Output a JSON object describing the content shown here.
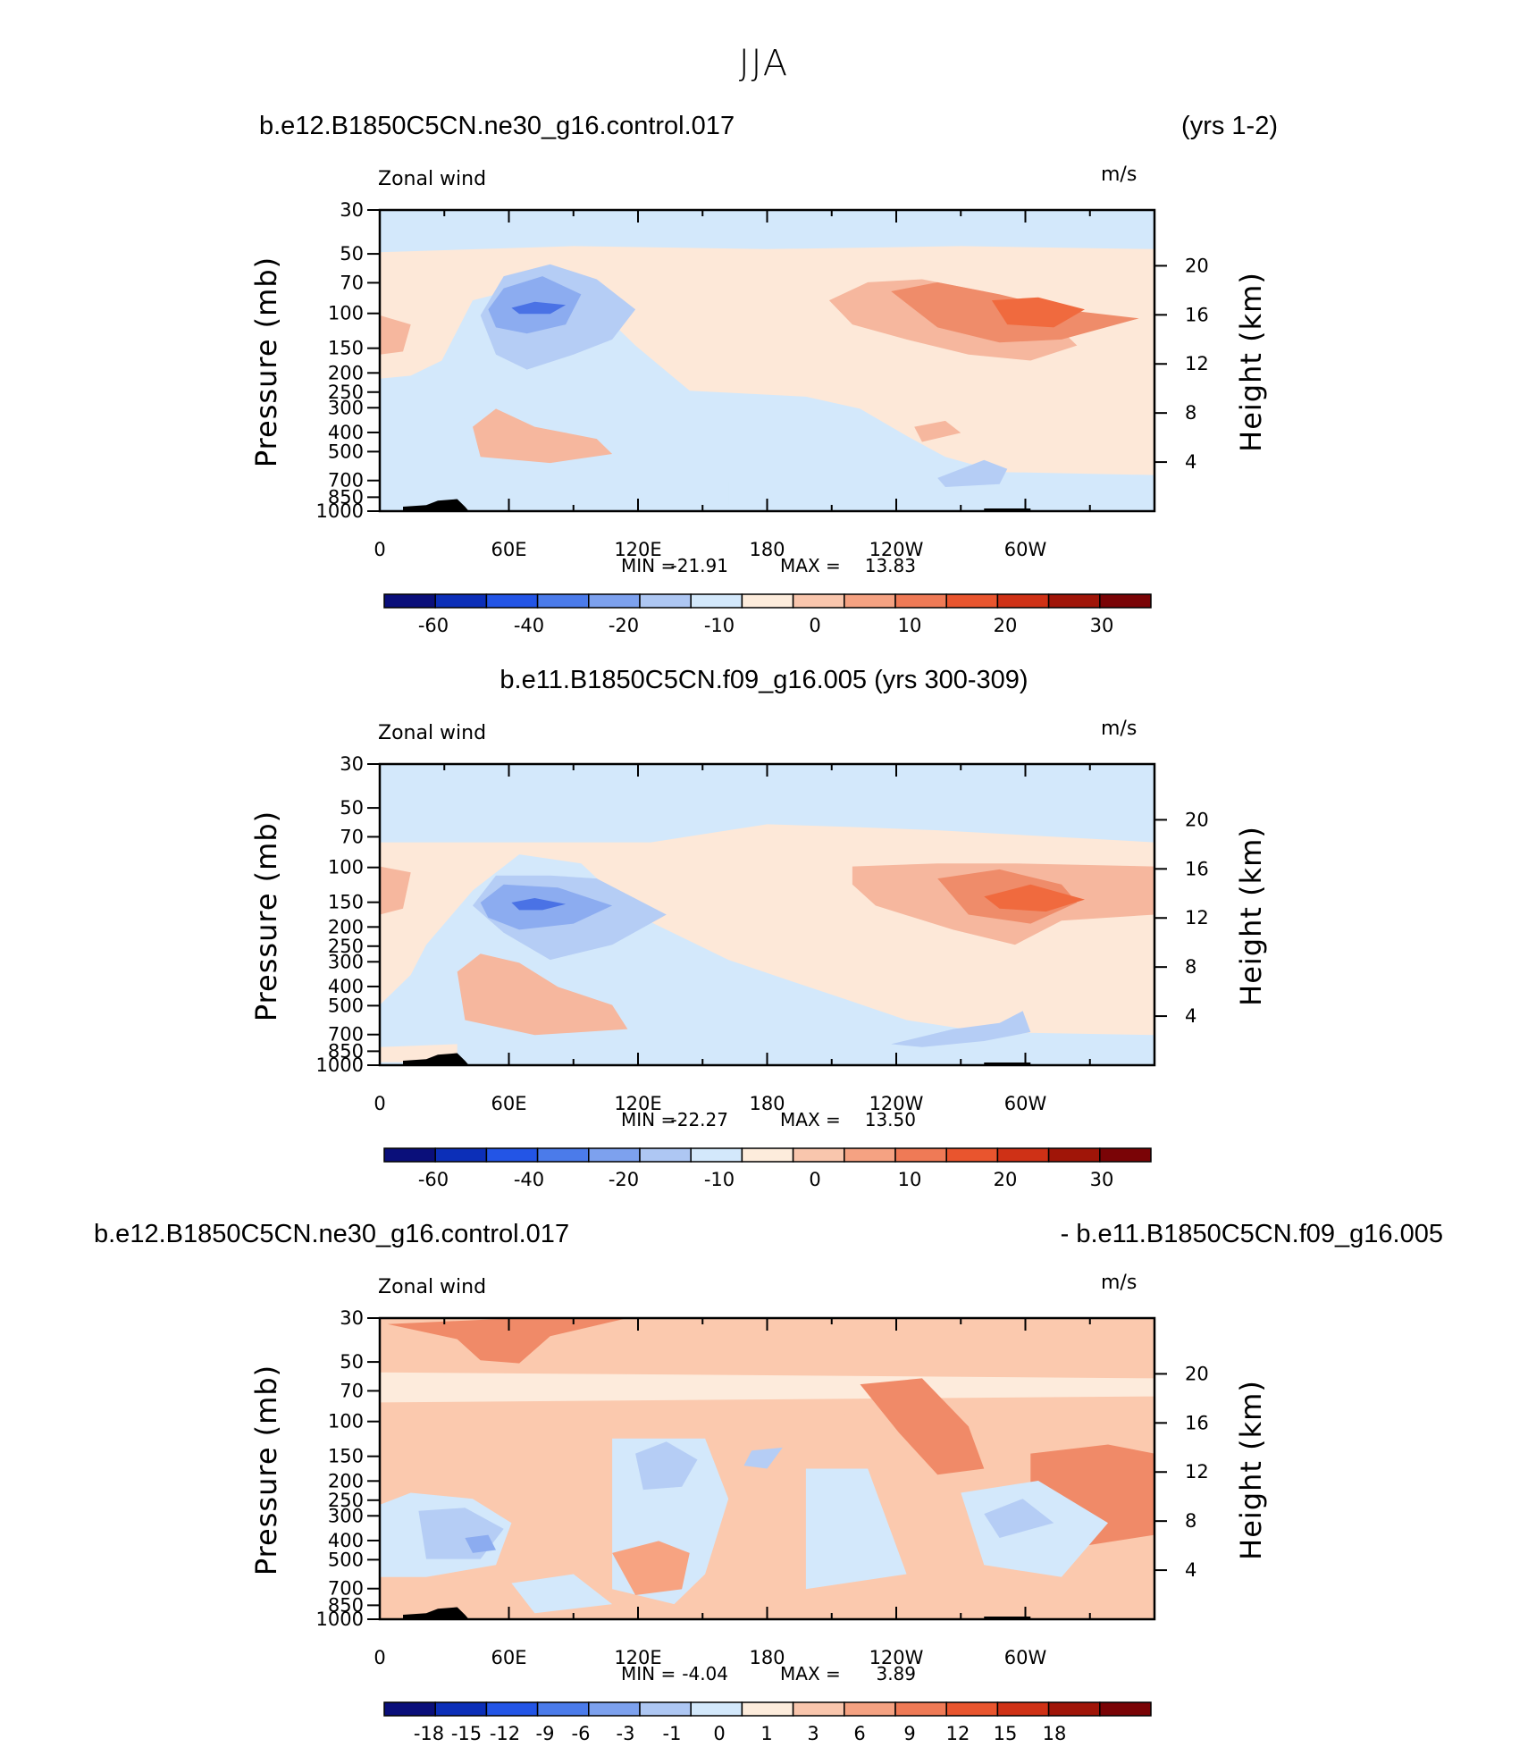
{
  "figure_title": "JJA",
  "chart_data": [
    {
      "type": "heatmap",
      "title_left": "b.e12.B1850C5CN.ne30_g16.control.017",
      "title_right": "(yrs 1-2)",
      "title_center": "",
      "subtitle_left": "Zonal wind",
      "units": "m/s",
      "ylabel": "Pressure (mb)",
      "ylabel_right": "Height (km)",
      "x_ticks": [
        "0",
        "60E",
        "120E",
        "180",
        "120W",
        "60W"
      ],
      "y_ticks": [
        "30",
        "50",
        "70",
        "100",
        "150",
        "200",
        "250",
        "300",
        "400",
        "500",
        "700",
        "850",
        "1000"
      ],
      "y_ticks_right": [
        "20",
        "16",
        "12",
        "8",
        "4"
      ],
      "min_label": "MIN =",
      "min_value": "-21.91",
      "max_label": "MAX =",
      "max_value": "13.83",
      "colorbar_labels": [
        "-60",
        "-40",
        "-20",
        "-10",
        "0",
        "10",
        "20",
        "30"
      ],
      "colors": [
        "#d3e8fb",
        "#fde8d8",
        "#b5cdf5",
        "#f6b79e",
        "#8cacf0",
        "#ef8c6a",
        "#4a72e5",
        "#f06a3e",
        "#2c55e0",
        "#ffffff"
      ]
    },
    {
      "type": "heatmap",
      "title_left": "",
      "title_right": "",
      "title_center": "b.e11.B1850C5CN.f09_g16.005 (yrs 300-309)",
      "subtitle_left": "Zonal wind",
      "units": "m/s",
      "ylabel": "Pressure (mb)",
      "ylabel_right": "Height (km)",
      "x_ticks": [
        "0",
        "60E",
        "120E",
        "180",
        "120W",
        "60W"
      ],
      "y_ticks": [
        "30",
        "50",
        "70",
        "100",
        "150",
        "200",
        "250",
        "300",
        "400",
        "500",
        "700",
        "850",
        "1000"
      ],
      "y_ticks_right": [
        "20",
        "16",
        "12",
        "8",
        "4"
      ],
      "min_label": "MIN =",
      "min_value": "-22.27",
      "max_label": "MAX =",
      "max_value": "13.50",
      "colorbar_labels": [
        "-60",
        "-40",
        "-20",
        "-10",
        "0",
        "10",
        "20",
        "30"
      ],
      "colors": [
        "#d3e8fb",
        "#fde8d8",
        "#b5cdf5",
        "#f6b79e",
        "#8cacf0",
        "#ef8c6a",
        "#4a72e5",
        "#f06a3e",
        "#2c55e0",
        "#ffffff"
      ]
    },
    {
      "type": "heatmap",
      "title_left": "b.e12.B1850C5CN.ne30_g16.control.017",
      "title_right": "- b.e11.B1850C5CN.f09_g16.005",
      "title_center": "",
      "subtitle_left": "Zonal wind",
      "units": "m/s",
      "ylabel": "Pressure (mb)",
      "ylabel_right": "Height (km)",
      "x_ticks": [
        "0",
        "60E",
        "120E",
        "180",
        "120W",
        "60W"
      ],
      "y_ticks": [
        "30",
        "50",
        "70",
        "100",
        "150",
        "200",
        "250",
        "300",
        "400",
        "500",
        "700",
        "850",
        "1000"
      ],
      "y_ticks_right": [
        "20",
        "16",
        "12",
        "8",
        "4"
      ],
      "min_label": "MIN =",
      "min_value": "-4.04",
      "max_label": "MAX =",
      "max_value": "3.89",
      "colorbar_labels": [
        "-18",
        "-15",
        "-12",
        "-9",
        "-6",
        "-3",
        "-1",
        "0",
        "1",
        "3",
        "6",
        "9",
        "12",
        "15",
        "18"
      ],
      "colors": [
        "#fbc9ae",
        "#d3e8fb",
        "#fdebdc",
        "#b5cdf5",
        "#f7a381",
        "#8cacf0",
        "#f08a68",
        "#4a72e5",
        "#ffffff"
      ]
    }
  ],
  "colorbar_colors": [
    "#0a0f7a",
    "#0c2fb8",
    "#2355e6",
    "#4b7bea",
    "#7da1ee",
    "#aec7f3",
    "#d3e8fb",
    "#fdecdc",
    "#f9c6ad",
    "#f5a282",
    "#ef7a56",
    "#e9552e",
    "#cf3116",
    "#a01508",
    "#7a0406"
  ]
}
